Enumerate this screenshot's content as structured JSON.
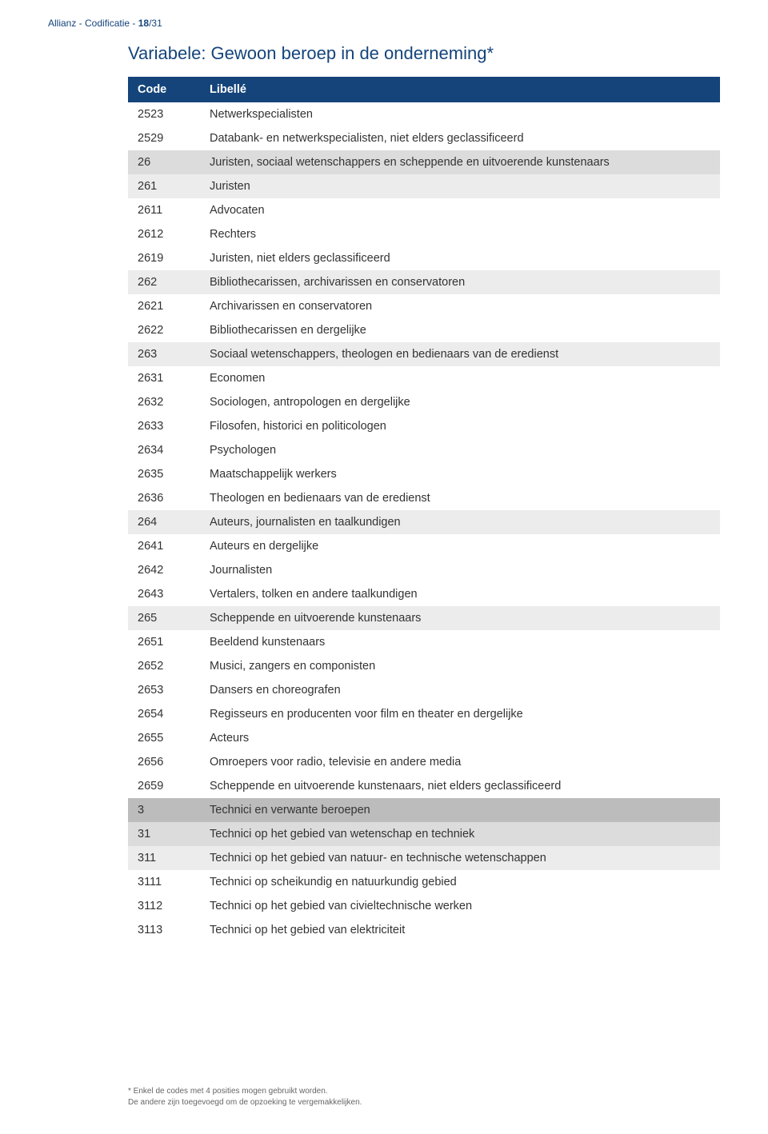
{
  "header": {
    "prefix": "Allianz - Codificatie - ",
    "page_current": "18",
    "page_sep": "/",
    "page_total": "31"
  },
  "title": "Variabele: Gewoon beroep in de onderneming*",
  "columns": {
    "code": "Code",
    "label": "Libellé"
  },
  "rows": [
    {
      "code": "2523",
      "label": "Netwerkspecialisten",
      "level": 3
    },
    {
      "code": "2529",
      "label": "Databank- en netwerkspecialisten, niet elders geclassificeerd",
      "level": 3
    },
    {
      "code": "26",
      "label": "Juristen, sociaal wetenschappers en scheppende en uitvoerende kunstenaars",
      "level": 1
    },
    {
      "code": "261",
      "label": "Juristen",
      "level": 2
    },
    {
      "code": "2611",
      "label": "Advocaten",
      "level": 3
    },
    {
      "code": "2612",
      "label": "Rechters",
      "level": 3
    },
    {
      "code": "2619",
      "label": "Juristen, niet elders geclassificeerd",
      "level": 3
    },
    {
      "code": "262",
      "label": "Bibliothecarissen, archivarissen en conservatoren",
      "level": 2
    },
    {
      "code": "2621",
      "label": "Archivarissen en conservatoren",
      "level": 3
    },
    {
      "code": "2622",
      "label": "Bibliothecarissen en dergelijke",
      "level": 3
    },
    {
      "code": "263",
      "label": "Sociaal wetenschappers, theologen en bedienaars van de eredienst",
      "level": 2
    },
    {
      "code": "2631",
      "label": "Economen",
      "level": 3
    },
    {
      "code": "2632",
      "label": "Sociologen, antropologen en dergelijke",
      "level": 3
    },
    {
      "code": "2633",
      "label": "Filosofen, historici en politicologen",
      "level": 3
    },
    {
      "code": "2634",
      "label": "Psychologen",
      "level": 3
    },
    {
      "code": "2635",
      "label": "Maatschappelijk werkers",
      "level": 3
    },
    {
      "code": "2636",
      "label": "Theologen en bedienaars van de eredienst",
      "level": 3
    },
    {
      "code": "264",
      "label": "Auteurs, journalisten en taalkundigen",
      "level": 2
    },
    {
      "code": "2641",
      "label": "Auteurs en dergelijke",
      "level": 3
    },
    {
      "code": "2642",
      "label": "Journalisten",
      "level": 3
    },
    {
      "code": "2643",
      "label": "Vertalers, tolken en andere taalkundigen",
      "level": 3
    },
    {
      "code": "265",
      "label": "Scheppende en uitvoerende kunstenaars",
      "level": 2
    },
    {
      "code": "2651",
      "label": "Beeldend kunstenaars",
      "level": 3
    },
    {
      "code": "2652",
      "label": "Musici, zangers en componisten",
      "level": 3
    },
    {
      "code": "2653",
      "label": "Dansers en choreografen",
      "level": 3
    },
    {
      "code": "2654",
      "label": "Regisseurs en producenten voor film en theater en dergelijke",
      "level": 3
    },
    {
      "code": "2655",
      "label": "Acteurs",
      "level": 3
    },
    {
      "code": "2656",
      "label": "Omroepers voor radio, televisie en andere media",
      "level": 3
    },
    {
      "code": "2659",
      "label": "Scheppende en uitvoerende kunstenaars, niet elders geclassificeerd",
      "level": 3
    },
    {
      "code": "3",
      "label": "Technici en verwante beroepen",
      "level": 0
    },
    {
      "code": "31",
      "label": "Technici op het gebied van wetenschap en techniek",
      "level": 1
    },
    {
      "code": "311",
      "label": "Technici op het gebied van natuur- en technische wetenschappen",
      "level": 2
    },
    {
      "code": "3111",
      "label": "Technici op scheikundig en natuurkundig gebied",
      "level": 3
    },
    {
      "code": "3112",
      "label": "Technici op het gebied van civieltechnische werken",
      "level": 3
    },
    {
      "code": "3113",
      "label": "Technici op het gebied van elektriciteit",
      "level": 3
    }
  ],
  "footnote": {
    "line1": "* Enkel de codes met 4 posities mogen gebruikt worden.",
    "line2": "De andere zijn toegevoegd om de opzoeking te vergemakkelijken."
  }
}
